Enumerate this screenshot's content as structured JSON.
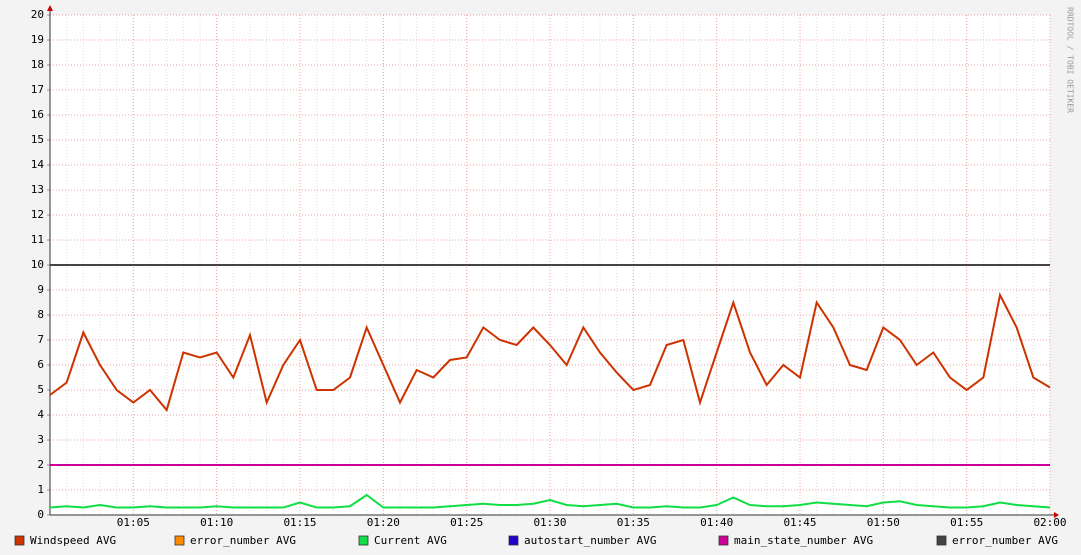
{
  "chart_data": {
    "type": "line",
    "x": [
      "01:00",
      "01:01",
      "01:02",
      "01:03",
      "01:04",
      "01:05",
      "01:06",
      "01:07",
      "01:08",
      "01:09",
      "01:10",
      "01:11",
      "01:12",
      "01:13",
      "01:14",
      "01:15",
      "01:16",
      "01:17",
      "01:18",
      "01:19",
      "01:20",
      "01:21",
      "01:22",
      "01:23",
      "01:24",
      "01:25",
      "01:26",
      "01:27",
      "01:28",
      "01:29",
      "01:30",
      "01:31",
      "01:32",
      "01:33",
      "01:34",
      "01:35",
      "01:36",
      "01:37",
      "01:38",
      "01:39",
      "01:40",
      "01:41",
      "01:42",
      "01:43",
      "01:44",
      "01:45",
      "01:46",
      "01:47",
      "01:48",
      "01:49",
      "01:50",
      "01:51",
      "01:52",
      "01:53",
      "01:54",
      "01:55",
      "01:56",
      "01:57",
      "01:58",
      "01:59",
      "02:00"
    ],
    "series": [
      {
        "name": "Windspeed AVG",
        "color": "#cc3300",
        "values": [
          4.8,
          5.3,
          7.3,
          6,
          5,
          4.5,
          5,
          4.2,
          6.5,
          6.3,
          6.5,
          5.5,
          7.2,
          4.5,
          6,
          7,
          5,
          5,
          5.5,
          7.5,
          6,
          4.5,
          5.8,
          5.5,
          6.2,
          6.3,
          7.5,
          7,
          6.8,
          7.5,
          6.8,
          6,
          7.5,
          6.5,
          5.7,
          5,
          5.2,
          6.8,
          7,
          4.5,
          6.5,
          8.5,
          6.5,
          5.2,
          6,
          5.5,
          8.5,
          7.5,
          6,
          5.8,
          7.5,
          7,
          6,
          6.5,
          5.5,
          5,
          5.5,
          8.8,
          7.5,
          5.5,
          5.1
        ]
      },
      {
        "name": "error_number AVG",
        "color": "#ff8800",
        "values": [
          null,
          null,
          null,
          null,
          null,
          null,
          null,
          null,
          null,
          null,
          null,
          null,
          null,
          null,
          null,
          null,
          null,
          null,
          null,
          null,
          null,
          null,
          null,
          null,
          null,
          null,
          null,
          null,
          null,
          null,
          null,
          null,
          null,
          null,
          null,
          null,
          null,
          null,
          null,
          null,
          null,
          null,
          null,
          null,
          null,
          null,
          null,
          null,
          null,
          null,
          null,
          null,
          null,
          null,
          null,
          null,
          null,
          null,
          null,
          null,
          null
        ]
      },
      {
        "name": "Current AVG",
        "color": "#11dd44",
        "values": [
          0.3,
          0.35,
          0.3,
          0.4,
          0.3,
          0.3,
          0.35,
          0.3,
          0.3,
          0.3,
          0.35,
          0.3,
          0.3,
          0.3,
          0.3,
          0.5,
          0.3,
          0.3,
          0.35,
          0.8,
          0.3,
          0.3,
          0.3,
          0.3,
          0.35,
          0.4,
          0.45,
          0.4,
          0.4,
          0.45,
          0.6,
          0.4,
          0.35,
          0.4,
          0.45,
          0.3,
          0.3,
          0.35,
          0.3,
          0.3,
          0.4,
          0.7,
          0.4,
          0.35,
          0.35,
          0.4,
          0.5,
          0.45,
          0.4,
          0.35,
          0.5,
          0.55,
          0.4,
          0.35,
          0.3,
          0.3,
          0.35,
          0.5,
          0.4,
          0.35,
          0.3
        ]
      },
      {
        "name": "autostart_number AVG",
        "color": "#2200cc",
        "values": [
          null,
          null,
          null,
          null,
          null,
          null,
          null,
          null,
          null,
          null,
          null,
          null,
          null,
          null,
          null,
          null,
          null,
          null,
          null,
          null,
          null,
          null,
          null,
          null,
          null,
          null,
          null,
          null,
          null,
          null,
          null,
          null,
          null,
          null,
          null,
          null,
          null,
          null,
          null,
          null,
          null,
          null,
          null,
          null,
          null,
          null,
          null,
          null,
          null,
          null,
          null,
          null,
          null,
          null,
          null,
          null,
          null,
          null,
          null,
          null,
          null
        ]
      },
      {
        "name": "main_state_number AVG",
        "color": "#cc0099",
        "values": [
          2,
          2,
          2,
          2,
          2,
          2,
          2,
          2,
          2,
          2,
          2,
          2,
          2,
          2,
          2,
          2,
          2,
          2,
          2,
          2,
          2,
          2,
          2,
          2,
          2,
          2,
          2,
          2,
          2,
          2,
          2,
          2,
          2,
          2,
          2,
          2,
          2,
          2,
          2,
          2,
          2,
          2,
          2,
          2,
          2,
          2,
          2,
          2,
          2,
          2,
          2,
          2,
          2,
          2,
          2,
          2,
          2,
          2,
          2,
          2,
          2
        ]
      },
      {
        "name": "error_number AVG",
        "color": "#444444",
        "values": [
          10,
          10,
          10,
          10,
          10,
          10,
          10,
          10,
          10,
          10,
          10,
          10,
          10,
          10,
          10,
          10,
          10,
          10,
          10,
          10,
          10,
          10,
          10,
          10,
          10,
          10,
          10,
          10,
          10,
          10,
          10,
          10,
          10,
          10,
          10,
          10,
          10,
          10,
          10,
          10,
          10,
          10,
          10,
          10,
          10,
          10,
          10,
          10,
          10,
          10,
          10,
          10,
          10,
          10,
          10,
          10,
          10,
          10,
          10,
          10,
          10
        ]
      }
    ],
    "ylim": [
      0,
      20
    ],
    "yticks": [
      0,
      1,
      2,
      3,
      4,
      5,
      6,
      7,
      8,
      9,
      10,
      11,
      12,
      13,
      14,
      15,
      16,
      17,
      18,
      19,
      20
    ],
    "xticks": [
      "01:05",
      "01:10",
      "01:15",
      "01:20",
      "01:25",
      "01:30",
      "01:35",
      "01:40",
      "01:45",
      "01:50",
      "01:55",
      "02:00"
    ],
    "grid": true,
    "watermark": "RRDTOOL / TOBI OETIKER"
  }
}
